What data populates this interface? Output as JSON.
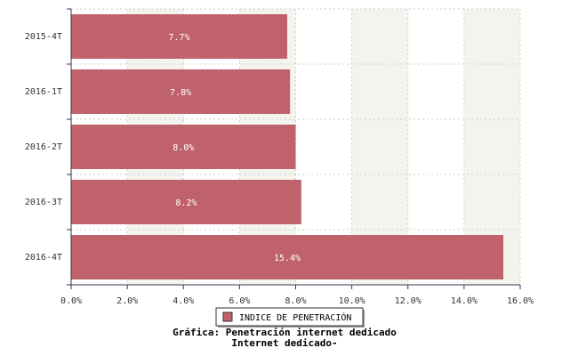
{
  "chart_data": {
    "type": "bar",
    "orientation": "horizontal",
    "title": "Gráfica: Penetración internet dedicado",
    "subtitle": "Internet dedicado-",
    "categories": [
      "2015-4T",
      "2016-1T",
      "2016-2T",
      "2016-3T",
      "2016-4T"
    ],
    "series": [
      {
        "name": "INDICE DE PENETRACIÓN",
        "color": "#c0626b",
        "values": [
          7.7,
          7.8,
          8.0,
          8.2,
          15.4
        ],
        "value_labels": [
          "7.7%",
          "7.8%",
          "8.0%",
          "8.2%",
          "15.4%"
        ]
      }
    ],
    "xlim": [
      0,
      16
    ],
    "xticks": [
      {
        "value": 0,
        "label": "0.0%"
      },
      {
        "value": 2,
        "label": "2.0%"
      },
      {
        "value": 4,
        "label": "4.0%"
      },
      {
        "value": 6,
        "label": "6.0%"
      },
      {
        "value": 8,
        "label": "8.0%"
      },
      {
        "value": 10,
        "label": "10.0%"
      },
      {
        "value": 12,
        "label": "12.0%"
      },
      {
        "value": 14,
        "label": "14.0%"
      },
      {
        "value": 16,
        "label": "16.0%"
      }
    ],
    "grid": true,
    "legend": "bottom"
  }
}
